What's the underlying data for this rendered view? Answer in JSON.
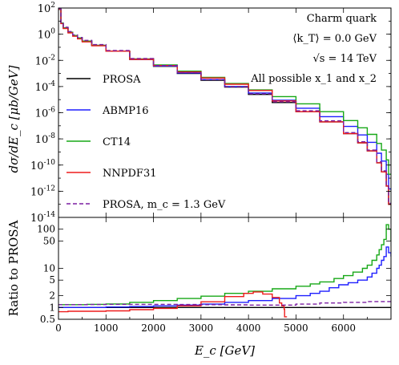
{
  "chart_data": [
    {
      "type": "line",
      "panel": "top",
      "ylabel": "dσ/dE_c [μb/GeV]",
      "yscale": "log",
      "ylim": [
        1e-14,
        100
      ],
      "xlim": [
        0,
        7000
      ],
      "y_tick_labels": [
        "10^2",
        "10^0",
        "10^-2",
        "10^-4",
        "10^-6",
        "10^-8",
        "10^-10",
        "10^-12",
        "10^-14"
      ],
      "y_tick_exponents": [
        2,
        0,
        -2,
        -4,
        -6,
        -8,
        -10,
        -12,
        -14
      ],
      "annotations": [
        "Charm quark",
        "⟨k_T⟩ = 0.0 GeV",
        "√s = 14 TeV",
        "All possible x_1 and x_2"
      ],
      "legend_position": "left",
      "series": [
        {
          "name": "PROSA",
          "color": "#000000",
          "dashed": false,
          "x": [
            0,
            50,
            100,
            200,
            300,
            400,
            500,
            700,
            1000,
            1500,
            2000,
            2500,
            3000,
            3500,
            4000,
            4500,
            5000,
            5500,
            6000,
            6300,
            6500,
            6700,
            6800,
            6900,
            6950
          ],
          "values": [
            80,
            7,
            3,
            1.4,
            0.8,
            0.5,
            0.3,
            0.14,
            0.05,
            0.012,
            0.0035,
            0.001,
            0.0003,
            9e-05,
            2.5e-05,
            6e-06,
            1.2e-06,
            2e-07,
            2.5e-08,
            5e-09,
            1.2e-09,
            1.5e-10,
            3e-11,
            2.5e-12,
            1e-13
          ]
        },
        {
          "name": "ABMP16",
          "color": "#1f1fff",
          "dashed": false,
          "x": [
            0,
            50,
            100,
            200,
            300,
            400,
            500,
            700,
            1000,
            1500,
            2000,
            2500,
            3000,
            3500,
            4000,
            4500,
            5000,
            5500,
            6000,
            6300,
            6500,
            6700,
            6800,
            6900,
            6950
          ],
          "values": [
            80,
            7,
            3,
            1.4,
            0.8,
            0.5,
            0.3,
            0.14,
            0.05,
            0.012,
            0.0037,
            0.0011,
            0.00034,
            0.0001,
            3.2e-05,
            9e-06,
            2.2e-06,
            5e-07,
            9e-08,
            2e-08,
            5.5e-09,
            8e-10,
            2e-10,
            2e-11,
            1.5e-12
          ]
        },
        {
          "name": "CT14",
          "color": "#17a817",
          "dashed": false,
          "x": [
            0,
            50,
            100,
            200,
            300,
            400,
            500,
            700,
            1000,
            1500,
            2000,
            2500,
            3000,
            3500,
            4000,
            4500,
            5000,
            5500,
            6000,
            6300,
            6500,
            6700,
            6800,
            6900,
            6950
          ],
          "values": [
            80,
            7,
            3,
            1.4,
            0.8,
            0.5,
            0.3,
            0.14,
            0.05,
            0.013,
            0.0045,
            0.0015,
            0.0005,
            0.00017,
            5.5e-05,
            1.7e-05,
            4.8e-06,
            1.2e-06,
            2.5e-07,
            7e-08,
            2.2e-08,
            4.5e-09,
            1.4e-09,
            2.5e-10,
            2e-11
          ]
        },
        {
          "name": "NNPDF31",
          "color": "#ee1c1c",
          "dashed": false,
          "x": [
            0,
            50,
            100,
            200,
            300,
            400,
            500,
            700,
            1000,
            1500,
            2000,
            2500,
            3000,
            3500,
            4000,
            4500,
            5000,
            5500,
            6000,
            6300,
            6500,
            6700,
            6800,
            6900,
            6950
          ],
          "values": [
            80,
            6.5,
            2.7,
            1.25,
            0.7,
            0.44,
            0.26,
            0.13,
            0.05,
            0.012,
            0.004,
            0.0013,
            0.00045,
            0.00015,
            5e-05,
            8e-06,
            1.2e-06,
            2e-07,
            2.5e-08,
            5e-09,
            1.2e-09,
            1.5e-10,
            3e-11,
            2.5e-12,
            1e-13
          ]
        },
        {
          "name": "PROSA,  m_c = 1.3 GeV",
          "color": "#7b1fa2",
          "dashed": true,
          "x": [
            0,
            50,
            100,
            200,
            300,
            400,
            500,
            700,
            1000,
            1500,
            2000,
            2500,
            3000,
            3500,
            4000,
            4500,
            5000,
            5500,
            6000,
            6300,
            6500,
            6700,
            6800,
            6900,
            6950
          ],
          "values": [
            90,
            8,
            3.4,
            1.6,
            0.9,
            0.56,
            0.34,
            0.16,
            0.057,
            0.014,
            0.004,
            0.00115,
            0.00034,
            0.0001,
            2.8e-05,
            6.8e-06,
            1.4e-06,
            2.4e-07,
            3e-08,
            6e-09,
            1.4e-09,
            1.8e-10,
            3.6e-11,
            3e-12,
            1.2e-13
          ]
        }
      ]
    },
    {
      "type": "line",
      "panel": "bottom",
      "ylabel": "Ratio to PROSA",
      "xlabel": "E_c [GeV]",
      "yscale": "log",
      "ylim": [
        0.5,
        200
      ],
      "xlim": [
        0,
        7000
      ],
      "x_ticks": [
        0,
        1000,
        2000,
        3000,
        4000,
        5000,
        6000
      ],
      "y_ticks": [
        0.5,
        1,
        2,
        5,
        10,
        50,
        100
      ],
      "y_tick_labels": [
        "0.5",
        "1",
        "2",
        "5",
        "10",
        "50",
        "100"
      ],
      "series": [
        {
          "name": "PROSA",
          "color": "#000000",
          "dashed": false,
          "x": [
            0,
            7000
          ],
          "values": [
            1,
            1
          ]
        },
        {
          "name": "ABMP16",
          "color": "#1f1fff",
          "dashed": false,
          "x": [
            0,
            500,
            1000,
            1500,
            2000,
            2500,
            3000,
            3500,
            4000,
            4500,
            5000,
            5300,
            5500,
            5700,
            5900,
            6100,
            6300,
            6500,
            6600,
            6700,
            6750,
            6800,
            6850,
            6900,
            6950,
            7000
          ],
          "values": [
            1,
            1,
            1.03,
            1.06,
            1.1,
            1.15,
            1.22,
            1.35,
            1.5,
            1.7,
            2.0,
            2.3,
            2.6,
            3.2,
            3.8,
            4.3,
            5,
            6,
            7.5,
            10,
            12,
            16,
            20,
            35,
            25,
            20
          ]
        },
        {
          "name": "CT14",
          "color": "#17a817",
          "dashed": false,
          "x": [
            0,
            300,
            600,
            1000,
            1500,
            2000,
            2500,
            3000,
            3500,
            4000,
            4500,
            5000,
            5300,
            5500,
            5800,
            6000,
            6200,
            6400,
            6500,
            6600,
            6700,
            6750,
            6800,
            6850,
            6900,
            6950,
            7000
          ],
          "values": [
            1.18,
            1.18,
            1.2,
            1.23,
            1.35,
            1.5,
            1.7,
            1.95,
            2.3,
            2.6,
            3.0,
            3.5,
            4,
            4.5,
            5.5,
            6.5,
            8,
            10,
            12,
            16,
            22,
            30,
            40,
            55,
            130,
            100,
            50
          ]
        },
        {
          "name": "NNPDF31",
          "color": "#ee1c1c",
          "dashed": false,
          "x": [
            0,
            200,
            500,
            1000,
            1500,
            2000,
            2500,
            3000,
            3500,
            3900,
            4100,
            4300,
            4500,
            4650,
            4700,
            4750,
            4760
          ],
          "values": [
            0.78,
            0.8,
            0.8,
            0.82,
            0.88,
            0.95,
            1.1,
            1.4,
            1.9,
            2.3,
            2.5,
            2.2,
            1.8,
            1.3,
            1.1,
            0.9,
            0.58
          ]
        },
        {
          "name": "PROSA,  m_c = 1.3 GeV",
          "color": "#7b1fa2",
          "dashed": true,
          "x": [
            0,
            300,
            600,
            1000,
            1500,
            2000,
            2500,
            3000,
            3500,
            4000,
            4500,
            5000,
            5500,
            6000,
            6500,
            7000
          ],
          "values": [
            1.18,
            1.18,
            1.19,
            1.2,
            1.2,
            1.2,
            1.19,
            1.18,
            1.17,
            1.15,
            1.15,
            1.22,
            1.3,
            1.35,
            1.42,
            1.35
          ]
        }
      ]
    }
  ]
}
